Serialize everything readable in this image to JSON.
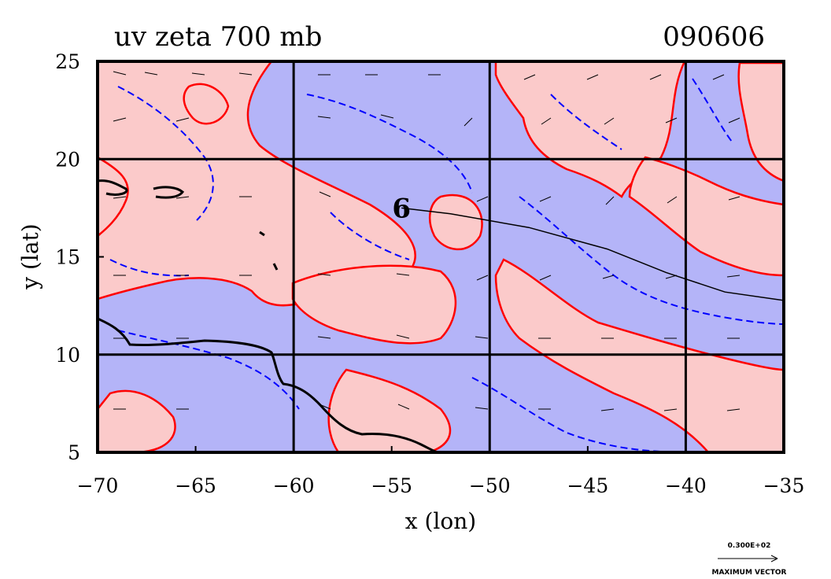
{
  "chart_data": {
    "type": "contour",
    "title": "uv zeta 700 mb",
    "date_label": "090606",
    "xlabel": "x (lon)",
    "ylabel": "y (lat)",
    "xlim": [
      -70,
      -35
    ],
    "ylim": [
      5,
      25
    ],
    "x_ticks": [
      -70,
      -65,
      -60,
      -55,
      -50,
      -45,
      -40,
      -35
    ],
    "x_tick_labels": [
      "−70",
      "−65",
      "−60",
      "−55",
      "−50",
      "−45",
      "−40",
      "−35"
    ],
    "y_ticks": [
      5,
      10,
      15,
      20,
      25
    ],
    "y_tick_labels": [
      "5",
      "10",
      "15",
      "20",
      "25"
    ],
    "grid_lon": [
      -60,
      -50,
      -40
    ],
    "grid_lat": [
      10,
      20
    ],
    "grid": true,
    "fill_colors": {
      "positive": "#fbcaca",
      "negative": "#b4b4f8"
    },
    "contour_colors": {
      "positive": "#ff0000",
      "negative": "#0000ff"
    },
    "storm_symbol": {
      "glyph": "6",
      "lon": -54.5,
      "lat": 17.5
    },
    "track": {
      "lon": [
        -54.5,
        -52,
        -48,
        -44,
        -41,
        -38,
        -34.5
      ],
      "lat": [
        17.5,
        17.2,
        16.5,
        15.4,
        14.2,
        13.2,
        12.7
      ]
    },
    "reference_vector": {
      "value_label": "0.300E+02",
      "caption": "MAXIMUM VECTOR"
    }
  }
}
